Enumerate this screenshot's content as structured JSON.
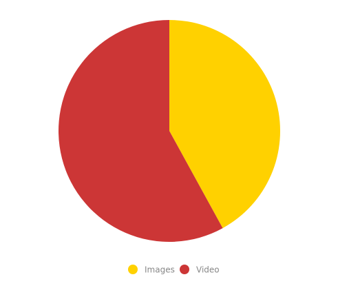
{
  "chart_data": {
    "type": "pie",
    "categories": [
      "Images",
      "Video"
    ],
    "values": [
      42,
      58
    ],
    "colors": [
      "#ffd100",
      "#cc3636"
    ],
    "legend": "bottom"
  }
}
